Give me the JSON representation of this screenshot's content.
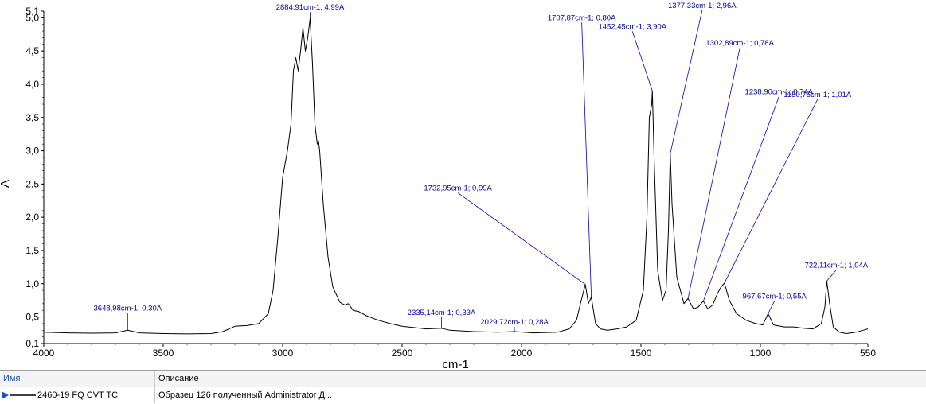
{
  "chart_data": {
    "type": "line",
    "xlabel": "cm-1",
    "ylabel": "A",
    "xlim": [
      4000,
      550
    ],
    "ylim": [
      0.1,
      5.1
    ],
    "x_ticks": [
      4000,
      3500,
      3000,
      2500,
      2000,
      1500,
      1000,
      550
    ],
    "x_tick_labels": [
      "4000",
      "3500",
      "3000",
      "2500",
      "2000",
      "1500",
      "1000",
      "550"
    ],
    "y_ticks": [
      0.1,
      0.5,
      1.0,
      1.5,
      2.0,
      2.5,
      3.0,
      3.5,
      4.0,
      4.5,
      5.0,
      5.1
    ],
    "y_tick_labels": [
      "0,1",
      "0,5",
      "1,0",
      "1,5",
      "2,0",
      "2,5",
      "3,0",
      "3,5",
      "4,0",
      "4,5",
      "5,0",
      "5,1"
    ],
    "grid": false,
    "series": [
      {
        "color": "#000000",
        "points": [
          [
            4000,
            0.27
          ],
          [
            3900,
            0.26
          ],
          [
            3800,
            0.255
          ],
          [
            3700,
            0.26
          ],
          [
            3648.98,
            0.3
          ],
          [
            3600,
            0.26
          ],
          [
            3500,
            0.25
          ],
          [
            3400,
            0.245
          ],
          [
            3300,
            0.25
          ],
          [
            3250,
            0.28
          ],
          [
            3200,
            0.36
          ],
          [
            3150,
            0.37
          ],
          [
            3100,
            0.4
          ],
          [
            3060,
            0.55
          ],
          [
            3040,
            0.9
          ],
          [
            3020,
            1.7
          ],
          [
            3000,
            2.6
          ],
          [
            2980,
            3.0
          ],
          [
            2965,
            3.4
          ],
          [
            2955,
            4.2
          ],
          [
            2945,
            4.4
          ],
          [
            2935,
            4.2
          ],
          [
            2925,
            4.5
          ],
          [
            2915,
            4.85
          ],
          [
            2905,
            4.5
          ],
          [
            2895,
            4.7
          ],
          [
            2884.91,
            4.99
          ],
          [
            2875,
            4.3
          ],
          [
            2865,
            3.4
          ],
          [
            2855,
            3.1
          ],
          [
            2850,
            3.15
          ],
          [
            2845,
            3.0
          ],
          [
            2830,
            2.2
          ],
          [
            2810,
            1.4
          ],
          [
            2790,
            0.95
          ],
          [
            2760,
            0.72
          ],
          [
            2740,
            0.68
          ],
          [
            2725,
            0.7
          ],
          [
            2705,
            0.6
          ],
          [
            2680,
            0.58
          ],
          [
            2650,
            0.52
          ],
          [
            2600,
            0.45
          ],
          [
            2550,
            0.4
          ],
          [
            2500,
            0.36
          ],
          [
            2450,
            0.34
          ],
          [
            2400,
            0.32
          ],
          [
            2335.14,
            0.33
          ],
          [
            2300,
            0.3
          ],
          [
            2200,
            0.28
          ],
          [
            2100,
            0.27
          ],
          [
            2029.72,
            0.28
          ],
          [
            1950,
            0.26
          ],
          [
            1850,
            0.27
          ],
          [
            1800,
            0.32
          ],
          [
            1770,
            0.45
          ],
          [
            1750,
            0.75
          ],
          [
            1732.95,
            0.99
          ],
          [
            1720,
            0.7
          ],
          [
            1707.87,
            0.8
          ],
          [
            1690,
            0.4
          ],
          [
            1670,
            0.32
          ],
          [
            1640,
            0.3
          ],
          [
            1600,
            0.32
          ],
          [
            1560,
            0.35
          ],
          [
            1520,
            0.45
          ],
          [
            1490,
            0.9
          ],
          [
            1475,
            2.0
          ],
          [
            1465,
            3.5
          ],
          [
            1460,
            3.6
          ],
          [
            1455,
            3.7
          ],
          [
            1452.45,
            3.9
          ],
          [
            1445,
            2.9
          ],
          [
            1430,
            1.2
          ],
          [
            1410,
            0.75
          ],
          [
            1395,
            0.9
          ],
          [
            1385,
            1.8
          ],
          [
            1377.33,
            2.96
          ],
          [
            1370,
            2.2
          ],
          [
            1350,
            1.1
          ],
          [
            1320,
            0.7
          ],
          [
            1302.89,
            0.78
          ],
          [
            1280,
            0.62
          ],
          [
            1260,
            0.65
          ],
          [
            1238.9,
            0.74
          ],
          [
            1220,
            0.62
          ],
          [
            1200,
            0.68
          ],
          [
            1180,
            0.85
          ],
          [
            1165,
            0.95
          ],
          [
            1150.75,
            1.01
          ],
          [
            1130,
            0.75
          ],
          [
            1100,
            0.55
          ],
          [
            1060,
            0.45
          ],
          [
            1020,
            0.4
          ],
          [
            990,
            0.38
          ],
          [
            967.67,
            0.55
          ],
          [
            945,
            0.38
          ],
          [
            900,
            0.35
          ],
          [
            860,
            0.35
          ],
          [
            820,
            0.33
          ],
          [
            780,
            0.32
          ],
          [
            745,
            0.4
          ],
          [
            730,
            0.65
          ],
          [
            722.11,
            1.04
          ],
          [
            710,
            0.7
          ],
          [
            695,
            0.35
          ],
          [
            670,
            0.27
          ],
          [
            640,
            0.25
          ],
          [
            600,
            0.27
          ],
          [
            570,
            0.3
          ],
          [
            550,
            0.32
          ]
        ]
      }
    ],
    "annotations": [
      {
        "x": 3648.98,
        "y": 0.3,
        "text": "3648,98cm-1; 0,30A"
      },
      {
        "x": 2884.91,
        "y": 4.99,
        "text": "2884,91cm-1; 4,99A"
      },
      {
        "x": 2335.14,
        "y": 0.33,
        "text": "2335,14cm-1; 0,33A"
      },
      {
        "x": 2029.72,
        "y": 0.28,
        "text": "2029,72cm-1; 0,28A"
      },
      {
        "x": 1732.95,
        "y": 0.99,
        "text": "1732,95cm-1; 0,99A"
      },
      {
        "x": 1707.87,
        "y": 0.8,
        "text": "1707,87cm-1; 0,80A"
      },
      {
        "x": 1452.45,
        "y": 3.9,
        "text": "1452,45cm-1; 3,90A"
      },
      {
        "x": 1377.33,
        "y": 2.96,
        "text": "1377,33cm-1; 2,96A"
      },
      {
        "x": 1302.89,
        "y": 0.78,
        "text": "1302,89cm-1; 0,78A"
      },
      {
        "x": 1238.9,
        "y": 0.74,
        "text": "1238,90cm-1; 0,74A"
      },
      {
        "x": 1150.75,
        "y": 1.01,
        "text": "1150,75cm-1; 1,01A"
      },
      {
        "x": 967.67,
        "y": 0.55,
        "text": "967,67cm-1; 0,55A"
      },
      {
        "x": 722.11,
        "y": 1.04,
        "text": "722,11cm-1; 1,04A"
      }
    ]
  },
  "legend_table": {
    "headers": {
      "name": "Имя",
      "description": "Описание"
    },
    "rows": [
      {
        "name": "2460-19 FQ CVT TC",
        "description": "Образец 126 полученный Administrator Д..."
      }
    ]
  },
  "colors": {
    "spectrum": "#000000",
    "annotation": "#0000cc",
    "legend_marker": "#1e4fc8"
  }
}
